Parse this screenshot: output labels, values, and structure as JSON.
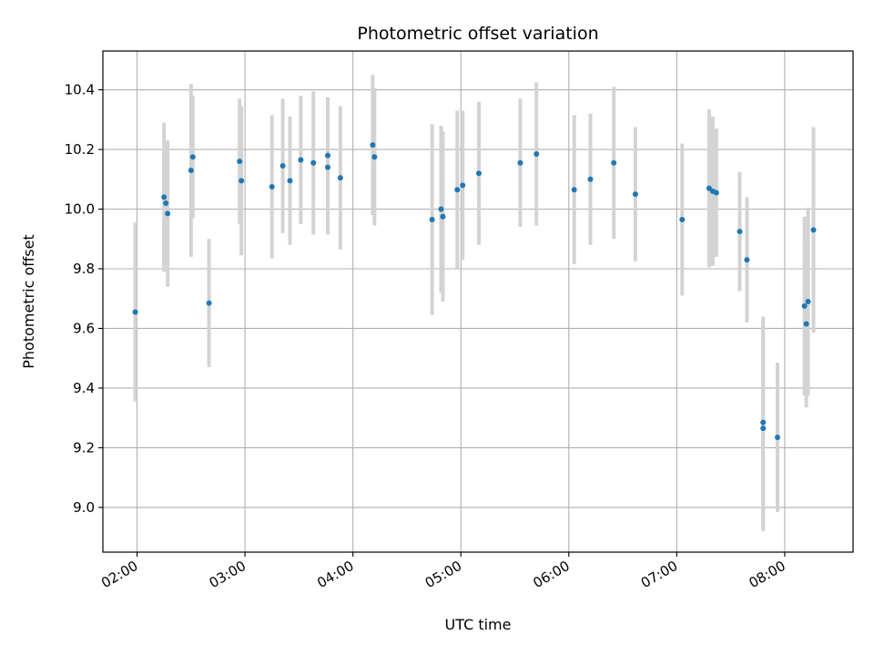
{
  "chart_data": {
    "type": "scatter",
    "title": "Photometric offset variation",
    "xlabel": "UTC time",
    "ylabel": "Photometric offset",
    "xlim": [
      "01:41",
      "08:38"
    ],
    "ylim": [
      8.85,
      10.53
    ],
    "grid": true,
    "x_ticks": [
      "02:00",
      "03:00",
      "04:00",
      "05:00",
      "06:00",
      "07:00",
      "08:00"
    ],
    "y_ticks": [
      9.0,
      9.2,
      9.4,
      9.6,
      9.8,
      10.0,
      10.2,
      10.4
    ],
    "y_tick_labels": [
      "9.0",
      "9.2",
      "9.4",
      "9.6",
      "9.8",
      "10.0",
      "10.2",
      "10.4"
    ],
    "colors": {
      "point": "#1f77b4",
      "errorbar": "#d3d3d3",
      "grid": "#b0b0b0"
    },
    "series": [
      {
        "x": [
          "01:59",
          "02:15",
          "02:16",
          "02:17",
          "02:30",
          "02:31",
          "02:40",
          "02:57",
          "02:58",
          "03:15",
          "03:21",
          "03:25",
          "03:31",
          "03:38",
          "03:46",
          "03:46",
          "03:53",
          "04:11",
          "04:12",
          "04:44",
          "04:49",
          "04:50",
          "04:58",
          "05:01",
          "05:10",
          "05:33",
          "05:42",
          "06:03",
          "06:12",
          "06:25",
          "06:37",
          "07:03",
          "07:18",
          "07:20",
          "07:22",
          "07:35",
          "07:39",
          "07:48",
          "07:48",
          "07:56",
          "08:11",
          "08:12",
          "08:13",
          "08:16"
        ],
        "y": [
          9.655,
          10.04,
          10.02,
          9.985,
          10.13,
          10.175,
          9.685,
          10.16,
          10.095,
          10.075,
          10.145,
          10.095,
          10.165,
          10.155,
          10.14,
          10.18,
          10.105,
          10.215,
          10.175,
          9.965,
          10.0,
          9.975,
          10.065,
          10.08,
          10.12,
          10.155,
          10.185,
          10.065,
          10.1,
          10.155,
          10.05,
          9.965,
          10.07,
          10.06,
          10.055,
          9.925,
          9.83,
          9.265,
          9.285,
          9.235,
          9.675,
          9.615,
          9.69,
          9.93
        ],
        "yerr": [
          0.3,
          0.25,
          0.21,
          0.245,
          0.29,
          0.205,
          0.215,
          0.21,
          0.25,
          0.24,
          0.225,
          0.215,
          0.215,
          0.24,
          0.225,
          0.195,
          0.24,
          0.235,
          0.23,
          0.32,
          0.28,
          0.285,
          0.265,
          0.25,
          0.24,
          0.215,
          0.24,
          0.25,
          0.22,
          0.255,
          0.225,
          0.255,
          0.265,
          0.25,
          0.215,
          0.2,
          0.21,
          0.345,
          0.355,
          0.25,
          0.3,
          0.28,
          0.315,
          0.345
        ]
      }
    ]
  }
}
